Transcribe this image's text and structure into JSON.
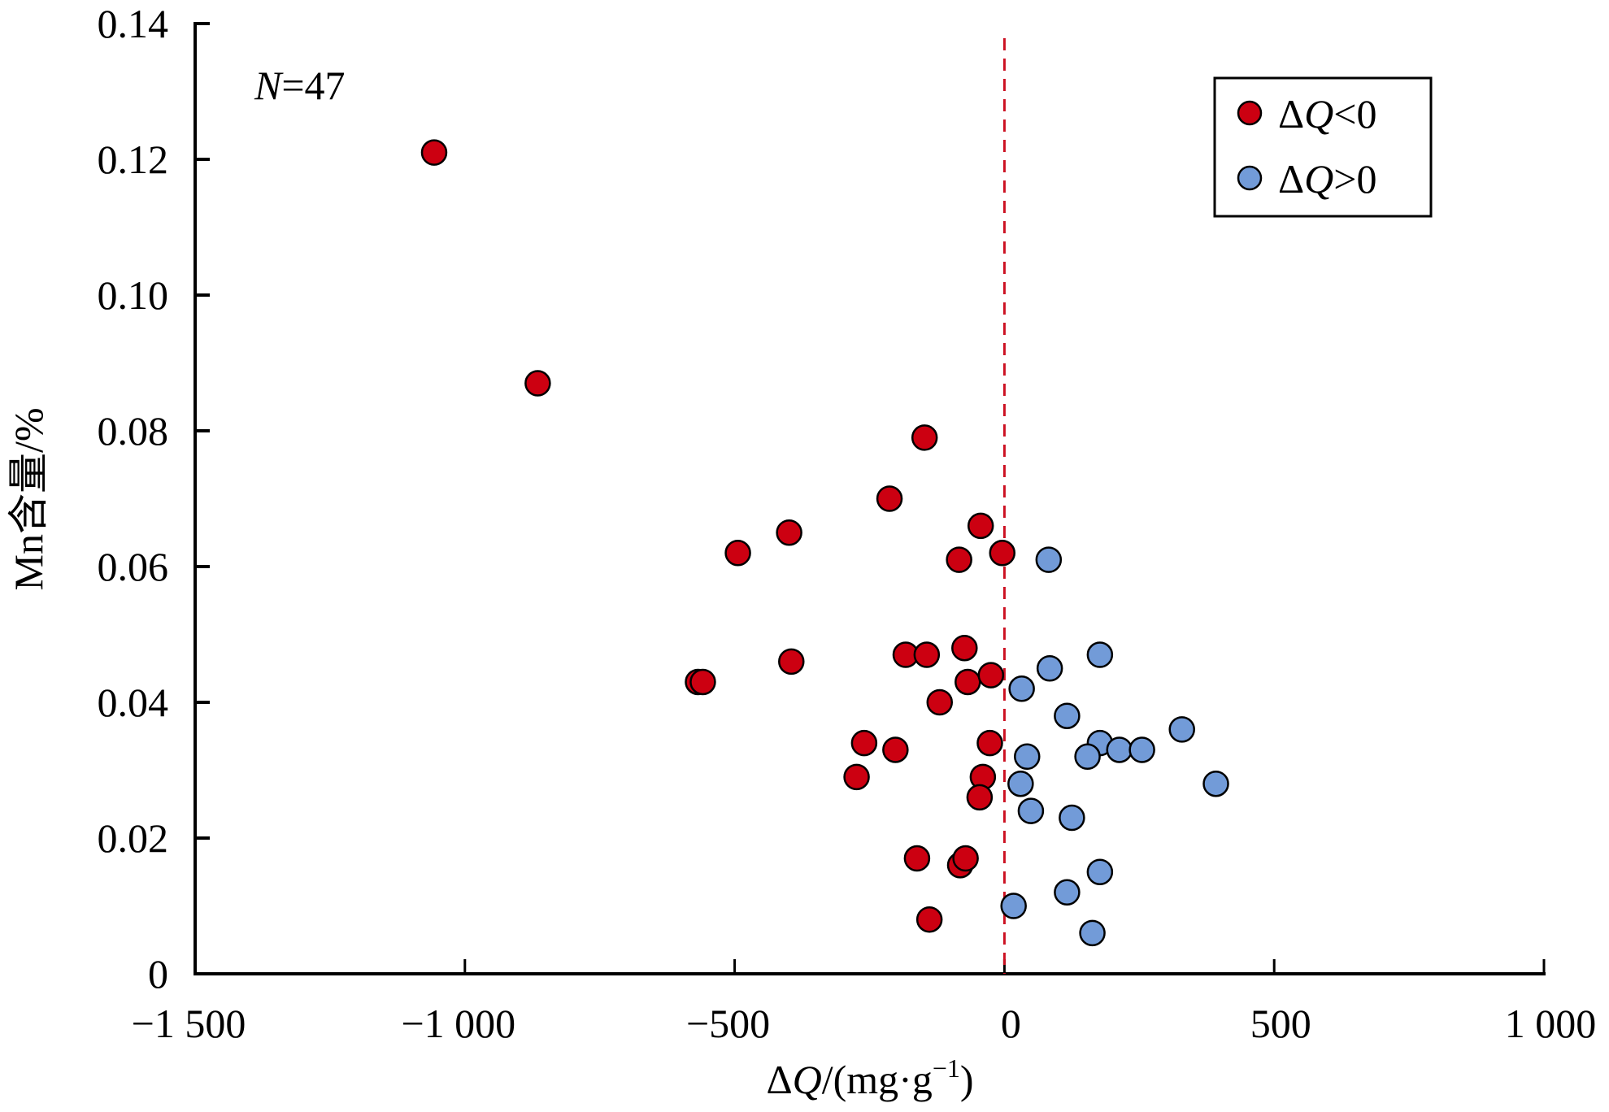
{
  "chart_data": {
    "type": "scatter",
    "title": "",
    "xlabel": "ΔQ/(mg·g⁻¹)",
    "xlabel_parts": {
      "delta": "Δ",
      "var": "Q",
      "unit": "/(mg·g",
      "exp": "−1",
      "close": ")"
    },
    "ylabel": "Mn含量/%",
    "xlim": [
      -1500,
      1000
    ],
    "ylim": [
      0,
      0.14
    ],
    "x_ticks": [
      -1500,
      -1000,
      -500,
      0,
      500,
      1000
    ],
    "x_tick_labels": [
      "−1 500",
      "−1 000",
      "−500",
      "0",
      "500",
      "1 000"
    ],
    "y_ticks": [
      0,
      0.02,
      0.04,
      0.06,
      0.08,
      0.1,
      0.12,
      0.14
    ],
    "y_tick_labels": [
      "0",
      "0.02",
      "0.04",
      "0.06",
      "0.08",
      "0.10",
      "0.12",
      "0.14"
    ],
    "grid": false,
    "reference_line": {
      "x": 0,
      "style": "dashed",
      "color": "#CC1122"
    },
    "annotation": {
      "italic": "N",
      "rest": "=47"
    },
    "legend_position": "top-right",
    "series": [
      {
        "name": "ΔQ<0",
        "label_parts": {
          "delta": "Δ",
          "var": "Q",
          "rest": "<0"
        },
        "color": "#CC0011",
        "points": [
          [
            -1057,
            0.121
          ],
          [
            -865,
            0.087
          ],
          [
            -148,
            0.079
          ],
          [
            -213,
            0.07
          ],
          [
            -399,
            0.065
          ],
          [
            -44,
            0.066
          ],
          [
            -494,
            0.062
          ],
          [
            -84,
            0.061
          ],
          [
            -4,
            0.062
          ],
          [
            -183,
            0.047
          ],
          [
            -144,
            0.047
          ],
          [
            -74,
            0.048
          ],
          [
            -395,
            0.046
          ],
          [
            -568,
            0.043
          ],
          [
            -559,
            0.043
          ],
          [
            -68,
            0.043
          ],
          [
            -25,
            0.044
          ],
          [
            -120,
            0.04
          ],
          [
            -260,
            0.034
          ],
          [
            -202,
            0.033
          ],
          [
            -27,
            0.034
          ],
          [
            -274,
            0.029
          ],
          [
            -40,
            0.029
          ],
          [
            -46,
            0.026
          ],
          [
            -162,
            0.017
          ],
          [
            -82,
            0.016
          ],
          [
            -72,
            0.017
          ],
          [
            -139,
            0.008
          ]
        ]
      },
      {
        "name": "ΔQ>0",
        "label_parts": {
          "delta": "Δ",
          "var": "Q",
          "rest": ">0"
        },
        "color": "#729BD8",
        "points": [
          [
            82,
            0.061
          ],
          [
            177,
            0.047
          ],
          [
            84,
            0.045
          ],
          [
            32,
            0.042
          ],
          [
            116,
            0.038
          ],
          [
            329,
            0.036
          ],
          [
            177,
            0.034
          ],
          [
            213,
            0.033
          ],
          [
            255,
            0.033
          ],
          [
            154,
            0.032
          ],
          [
            42,
            0.032
          ],
          [
            30,
            0.028
          ],
          [
            392,
            0.028
          ],
          [
            49,
            0.024
          ],
          [
            125,
            0.023
          ],
          [
            177,
            0.015
          ],
          [
            116,
            0.012
          ],
          [
            17,
            0.01
          ],
          [
            163,
            0.006
          ]
        ]
      }
    ]
  }
}
